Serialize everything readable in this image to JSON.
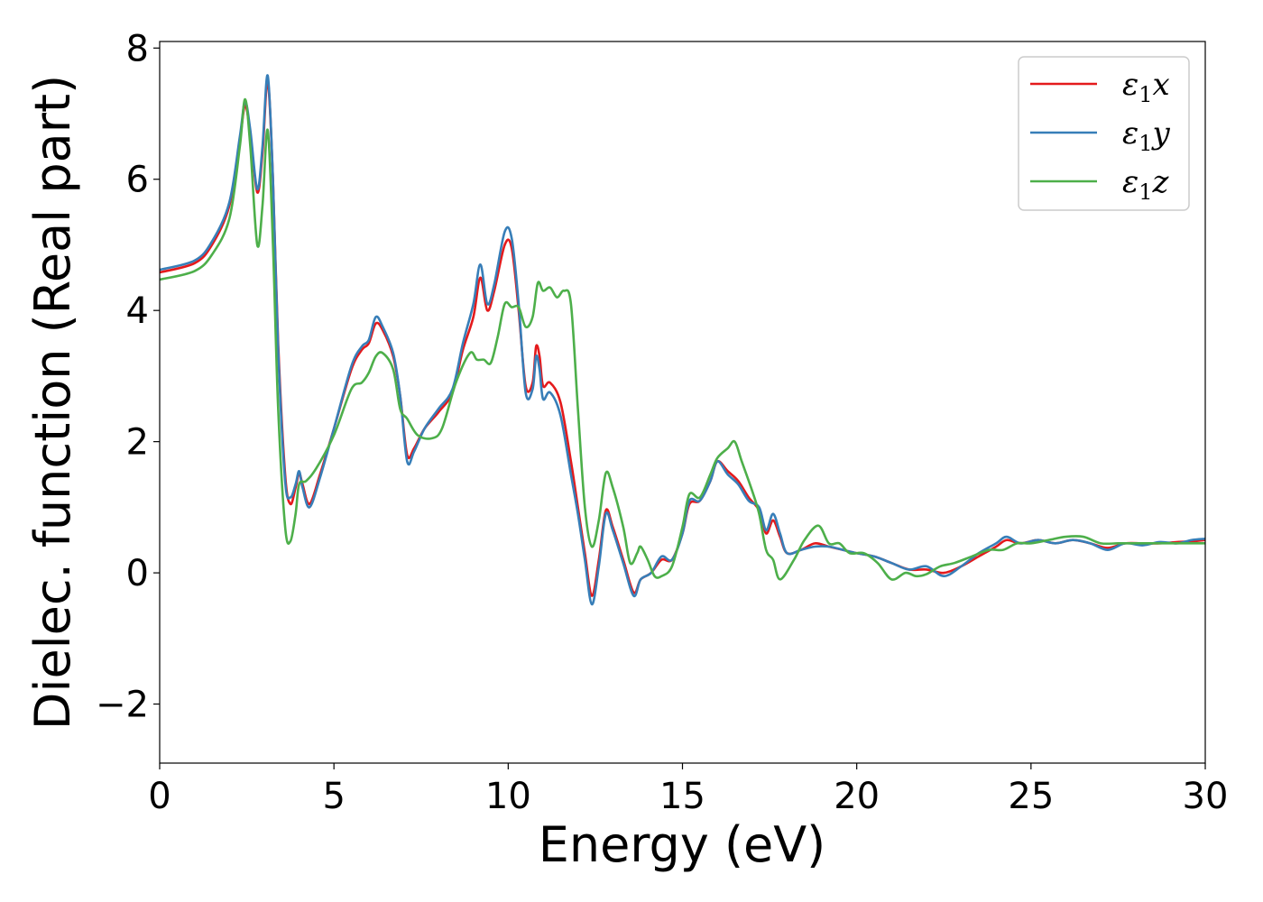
{
  "chart_data": {
    "type": "line",
    "title": "",
    "xlabel": "Energy (eV)",
    "ylabel": "Dielec. function (Real part)",
    "xlim": [
      0,
      30
    ],
    "ylim": [
      -2.9,
      8.1
    ],
    "xticks": [
      0,
      5,
      10,
      15,
      20,
      25,
      30
    ],
    "xtick_labels": [
      "0",
      "5",
      "10",
      "15",
      "20",
      "25",
      "30"
    ],
    "yticks": [
      -2,
      0,
      2,
      4,
      6,
      8
    ],
    "ytick_labels": [
      "−2",
      "0",
      "2",
      "4",
      "6",
      "8"
    ],
    "grid": false,
    "legend_position": "top-right",
    "series": [
      {
        "name": "ε1x",
        "legend_base": "ε",
        "legend_sub": "1",
        "legend_suffix": "x",
        "color": "#e41a1c",
        "points": [
          [
            0,
            4.58
          ],
          [
            1,
            4.72
          ],
          [
            1.5,
            5.0
          ],
          [
            2.0,
            5.6
          ],
          [
            2.3,
            6.6
          ],
          [
            2.45,
            7.12
          ],
          [
            2.6,
            6.7
          ],
          [
            2.8,
            5.8
          ],
          [
            2.95,
            6.4
          ],
          [
            3.1,
            7.5
          ],
          [
            3.25,
            6.0
          ],
          [
            3.4,
            3.5
          ],
          [
            3.6,
            1.5
          ],
          [
            3.75,
            1.05
          ],
          [
            3.9,
            1.3
          ],
          [
            4.0,
            1.52
          ],
          [
            4.1,
            1.35
          ],
          [
            4.3,
            1.05
          ],
          [
            4.6,
            1.5
          ],
          [
            5.0,
            2.2
          ],
          [
            5.5,
            3.1
          ],
          [
            5.8,
            3.4
          ],
          [
            6.0,
            3.5
          ],
          [
            6.2,
            3.8
          ],
          [
            6.4,
            3.7
          ],
          [
            6.7,
            3.3
          ],
          [
            6.9,
            2.7
          ],
          [
            7.1,
            1.8
          ],
          [
            7.3,
            1.9
          ],
          [
            7.6,
            2.2
          ],
          [
            8.0,
            2.45
          ],
          [
            8.4,
            2.75
          ],
          [
            8.7,
            3.4
          ],
          [
            9.0,
            3.9
          ],
          [
            9.2,
            4.5
          ],
          [
            9.4,
            4.0
          ],
          [
            9.6,
            4.3
          ],
          [
            9.9,
            5.0
          ],
          [
            10.1,
            4.95
          ],
          [
            10.3,
            4.0
          ],
          [
            10.5,
            2.85
          ],
          [
            10.7,
            2.9
          ],
          [
            10.8,
            3.45
          ],
          [
            10.9,
            3.3
          ],
          [
            11.0,
            2.85
          ],
          [
            11.2,
            2.9
          ],
          [
            11.5,
            2.6
          ],
          [
            11.8,
            1.7
          ],
          [
            12.0,
            1.0
          ],
          [
            12.2,
            0.3
          ],
          [
            12.4,
            -0.35
          ],
          [
            12.6,
            0.2
          ],
          [
            12.8,
            0.95
          ],
          [
            13.0,
            0.7
          ],
          [
            13.3,
            0.2
          ],
          [
            13.6,
            -0.3
          ],
          [
            13.8,
            -0.1
          ],
          [
            14.1,
            0.0
          ],
          [
            14.4,
            0.2
          ],
          [
            14.7,
            0.2
          ],
          [
            15.0,
            0.6
          ],
          [
            15.2,
            1.05
          ],
          [
            15.5,
            1.1
          ],
          [
            15.8,
            1.4
          ],
          [
            16.0,
            1.7
          ],
          [
            16.3,
            1.55
          ],
          [
            16.6,
            1.4
          ],
          [
            16.9,
            1.15
          ],
          [
            17.2,
            0.95
          ],
          [
            17.4,
            0.6
          ],
          [
            17.6,
            0.8
          ],
          [
            17.8,
            0.55
          ],
          [
            18.0,
            0.3
          ],
          [
            18.4,
            0.35
          ],
          [
            18.8,
            0.45
          ],
          [
            19.2,
            0.4
          ],
          [
            19.6,
            0.35
          ],
          [
            20.0,
            0.3
          ],
          [
            20.5,
            0.25
          ],
          [
            21.0,
            0.15
          ],
          [
            21.5,
            0.05
          ],
          [
            22.0,
            0.05
          ],
          [
            22.5,
            0.0
          ],
          [
            23.0,
            0.1
          ],
          [
            23.5,
            0.25
          ],
          [
            24.0,
            0.4
          ],
          [
            24.3,
            0.5
          ],
          [
            24.7,
            0.45
          ],
          [
            25.2,
            0.5
          ],
          [
            25.7,
            0.45
          ],
          [
            26.2,
            0.5
          ],
          [
            26.7,
            0.45
          ],
          [
            27.2,
            0.38
          ],
          [
            27.7,
            0.45
          ],
          [
            28.2,
            0.45
          ],
          [
            28.7,
            0.45
          ],
          [
            29.2,
            0.47
          ],
          [
            29.6,
            0.48
          ],
          [
            30,
            0.5
          ]
        ]
      },
      {
        "name": "ε1y",
        "legend_base": "ε",
        "legend_sub": "1",
        "legend_suffix": "y",
        "color": "#377eb8",
        "points": [
          [
            0,
            4.62
          ],
          [
            1,
            4.76
          ],
          [
            1.5,
            5.05
          ],
          [
            2.0,
            5.65
          ],
          [
            2.3,
            6.65
          ],
          [
            2.45,
            7.18
          ],
          [
            2.6,
            6.75
          ],
          [
            2.8,
            5.85
          ],
          [
            2.95,
            6.5
          ],
          [
            3.1,
            7.58
          ],
          [
            3.25,
            6.0
          ],
          [
            3.4,
            3.4
          ],
          [
            3.6,
            1.4
          ],
          [
            3.75,
            1.15
          ],
          [
            3.9,
            1.35
          ],
          [
            4.0,
            1.55
          ],
          [
            4.1,
            1.3
          ],
          [
            4.3,
            1.0
          ],
          [
            4.6,
            1.45
          ],
          [
            5.0,
            2.2
          ],
          [
            5.5,
            3.15
          ],
          [
            5.8,
            3.45
          ],
          [
            6.0,
            3.55
          ],
          [
            6.2,
            3.9
          ],
          [
            6.4,
            3.75
          ],
          [
            6.7,
            3.35
          ],
          [
            6.9,
            2.7
          ],
          [
            7.1,
            1.7
          ],
          [
            7.3,
            1.85
          ],
          [
            7.6,
            2.2
          ],
          [
            8.0,
            2.5
          ],
          [
            8.4,
            2.8
          ],
          [
            8.7,
            3.5
          ],
          [
            9.0,
            4.1
          ],
          [
            9.2,
            4.7
          ],
          [
            9.4,
            4.1
          ],
          [
            9.6,
            4.4
          ],
          [
            9.9,
            5.2
          ],
          [
            10.1,
            5.1
          ],
          [
            10.3,
            4.1
          ],
          [
            10.5,
            2.75
          ],
          [
            10.7,
            2.8
          ],
          [
            10.8,
            3.3
          ],
          [
            10.9,
            3.1
          ],
          [
            11.0,
            2.65
          ],
          [
            11.2,
            2.75
          ],
          [
            11.5,
            2.4
          ],
          [
            11.8,
            1.5
          ],
          [
            12.0,
            0.9
          ],
          [
            12.2,
            0.2
          ],
          [
            12.4,
            -0.48
          ],
          [
            12.6,
            0.1
          ],
          [
            12.8,
            0.9
          ],
          [
            13.0,
            0.65
          ],
          [
            13.3,
            0.15
          ],
          [
            13.6,
            -0.35
          ],
          [
            13.8,
            -0.1
          ],
          [
            14.1,
            0.0
          ],
          [
            14.4,
            0.25
          ],
          [
            14.7,
            0.2
          ],
          [
            15.0,
            0.6
          ],
          [
            15.2,
            1.1
          ],
          [
            15.5,
            1.1
          ],
          [
            15.8,
            1.4
          ],
          [
            16.0,
            1.7
          ],
          [
            16.3,
            1.5
          ],
          [
            16.6,
            1.35
          ],
          [
            16.9,
            1.1
          ],
          [
            17.2,
            1.0
          ],
          [
            17.4,
            0.65
          ],
          [
            17.6,
            0.9
          ],
          [
            17.8,
            0.6
          ],
          [
            18.0,
            0.3
          ],
          [
            18.4,
            0.35
          ],
          [
            18.8,
            0.4
          ],
          [
            19.2,
            0.4
          ],
          [
            19.6,
            0.35
          ],
          [
            20.0,
            0.3
          ],
          [
            20.5,
            0.25
          ],
          [
            21.0,
            0.15
          ],
          [
            21.5,
            0.05
          ],
          [
            22.0,
            0.1
          ],
          [
            22.5,
            -0.05
          ],
          [
            23.0,
            0.1
          ],
          [
            23.5,
            0.3
          ],
          [
            24.0,
            0.45
          ],
          [
            24.3,
            0.55
          ],
          [
            24.7,
            0.45
          ],
          [
            25.2,
            0.5
          ],
          [
            25.7,
            0.45
          ],
          [
            26.2,
            0.5
          ],
          [
            26.7,
            0.45
          ],
          [
            27.2,
            0.35
          ],
          [
            27.7,
            0.45
          ],
          [
            28.2,
            0.42
          ],
          [
            28.7,
            0.47
          ],
          [
            29.2,
            0.45
          ],
          [
            29.6,
            0.5
          ],
          [
            30,
            0.52
          ]
        ]
      },
      {
        "name": "ε1z",
        "legend_base": "ε",
        "legend_sub": "1",
        "legend_suffix": "z",
        "color": "#4daf4a",
        "points": [
          [
            0,
            4.47
          ],
          [
            1,
            4.6
          ],
          [
            1.5,
            4.85
          ],
          [
            2.0,
            5.4
          ],
          [
            2.3,
            6.5
          ],
          [
            2.45,
            7.22
          ],
          [
            2.6,
            6.5
          ],
          [
            2.8,
            5.0
          ],
          [
            2.95,
            5.6
          ],
          [
            3.1,
            6.75
          ],
          [
            3.25,
            5.0
          ],
          [
            3.4,
            2.5
          ],
          [
            3.6,
            0.7
          ],
          [
            3.75,
            0.48
          ],
          [
            3.9,
            0.9
          ],
          [
            4.0,
            1.35
          ],
          [
            4.2,
            1.4
          ],
          [
            4.5,
            1.6
          ],
          [
            5.0,
            2.1
          ],
          [
            5.5,
            2.8
          ],
          [
            5.8,
            2.9
          ],
          [
            6.0,
            3.05
          ],
          [
            6.2,
            3.3
          ],
          [
            6.4,
            3.35
          ],
          [
            6.7,
            3.1
          ],
          [
            6.9,
            2.5
          ],
          [
            7.1,
            2.35
          ],
          [
            7.4,
            2.1
          ],
          [
            7.8,
            2.05
          ],
          [
            8.1,
            2.2
          ],
          [
            8.5,
            2.9
          ],
          [
            8.9,
            3.35
          ],
          [
            9.1,
            3.25
          ],
          [
            9.3,
            3.25
          ],
          [
            9.5,
            3.2
          ],
          [
            9.7,
            3.6
          ],
          [
            9.9,
            4.1
          ],
          [
            10.1,
            4.05
          ],
          [
            10.3,
            4.05
          ],
          [
            10.5,
            3.75
          ],
          [
            10.7,
            3.9
          ],
          [
            10.85,
            4.42
          ],
          [
            11.0,
            4.3
          ],
          [
            11.2,
            4.35
          ],
          [
            11.4,
            4.2
          ],
          [
            11.6,
            4.3
          ],
          [
            11.8,
            4.1
          ],
          [
            12.0,
            2.5
          ],
          [
            12.2,
            1.0
          ],
          [
            12.4,
            0.4
          ],
          [
            12.6,
            0.8
          ],
          [
            12.8,
            1.52
          ],
          [
            13.0,
            1.3
          ],
          [
            13.3,
            0.7
          ],
          [
            13.5,
            0.15
          ],
          [
            13.7,
            0.3
          ],
          [
            13.8,
            0.4
          ],
          [
            14.0,
            0.2
          ],
          [
            14.2,
            -0.05
          ],
          [
            14.4,
            -0.05
          ],
          [
            14.7,
            0.1
          ],
          [
            15.0,
            0.7
          ],
          [
            15.2,
            1.2
          ],
          [
            15.5,
            1.15
          ],
          [
            15.8,
            1.5
          ],
          [
            16.0,
            1.75
          ],
          [
            16.3,
            1.9
          ],
          [
            16.5,
            2.0
          ],
          [
            16.7,
            1.7
          ],
          [
            17.0,
            1.25
          ],
          [
            17.2,
            0.9
          ],
          [
            17.4,
            0.35
          ],
          [
            17.6,
            0.2
          ],
          [
            17.8,
            -0.1
          ],
          [
            18.2,
            0.2
          ],
          [
            18.5,
            0.5
          ],
          [
            18.9,
            0.72
          ],
          [
            19.2,
            0.45
          ],
          [
            19.5,
            0.45
          ],
          [
            19.8,
            0.3
          ],
          [
            20.2,
            0.3
          ],
          [
            20.6,
            0.15
          ],
          [
            21.0,
            -0.1
          ],
          [
            21.4,
            0.0
          ],
          [
            21.7,
            -0.05
          ],
          [
            22.0,
            -0.02
          ],
          [
            22.4,
            0.1
          ],
          [
            22.8,
            0.15
          ],
          [
            23.3,
            0.25
          ],
          [
            23.8,
            0.35
          ],
          [
            24.2,
            0.35
          ],
          [
            24.6,
            0.45
          ],
          [
            25.0,
            0.45
          ],
          [
            25.5,
            0.5
          ],
          [
            26.0,
            0.55
          ],
          [
            26.5,
            0.55
          ],
          [
            27.0,
            0.45
          ],
          [
            27.5,
            0.45
          ],
          [
            28.0,
            0.45
          ],
          [
            28.5,
            0.45
          ],
          [
            29.0,
            0.45
          ],
          [
            29.5,
            0.45
          ],
          [
            30,
            0.45
          ]
        ]
      }
    ]
  }
}
